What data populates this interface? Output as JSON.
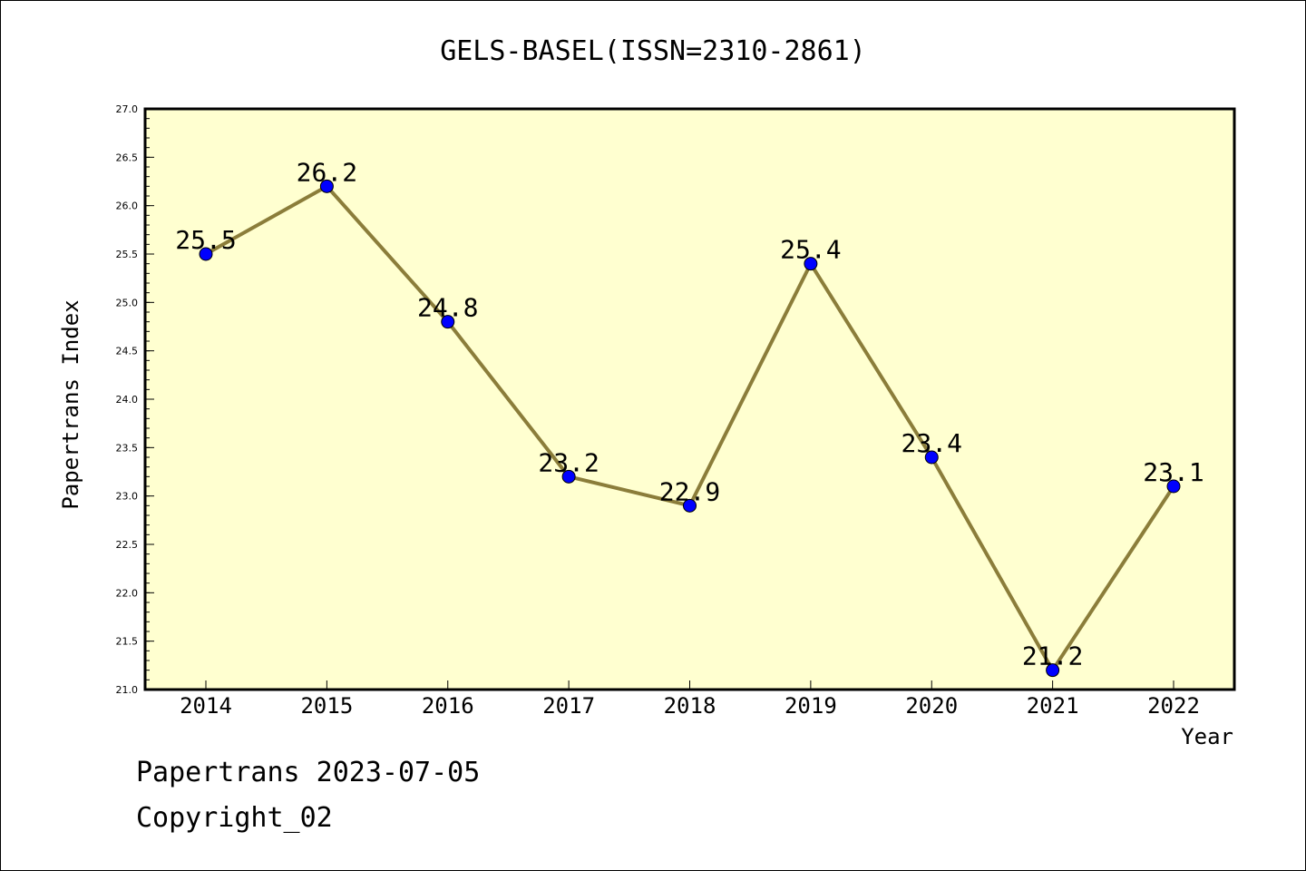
{
  "chart_data": {
    "type": "line",
    "title": "GELS-BASEL(ISSN=2310-2861)",
    "xlabel": "Year",
    "ylabel": "Papertrans Index",
    "categories": [
      "2014",
      "2015",
      "2016",
      "2017",
      "2018",
      "2019",
      "2020",
      "2021",
      "2022"
    ],
    "values": [
      25.5,
      26.2,
      24.8,
      23.2,
      22.9,
      25.4,
      23.4,
      21.2,
      23.1
    ],
    "data_labels": [
      "25.5",
      "26.2",
      "24.8",
      "23.2",
      "22.9",
      "25.4",
      "23.4",
      "21.2",
      "23.1"
    ],
    "ylim": [
      21.0,
      27.0
    ],
    "yticks": [
      "21.0",
      "21.5",
      "22.0",
      "22.5",
      "23.0",
      "23.5",
      "24.0",
      "24.5",
      "25.0",
      "25.5",
      "26.0",
      "26.5",
      "27.0"
    ],
    "grid": false,
    "legend": "none",
    "colors": {
      "line": "#8b7d3a",
      "marker": "#0000ff",
      "plot_bg": "#ffffd0"
    }
  },
  "footer": {
    "line1": "Papertrans 2023-07-05",
    "line2": "Copyright_02"
  }
}
